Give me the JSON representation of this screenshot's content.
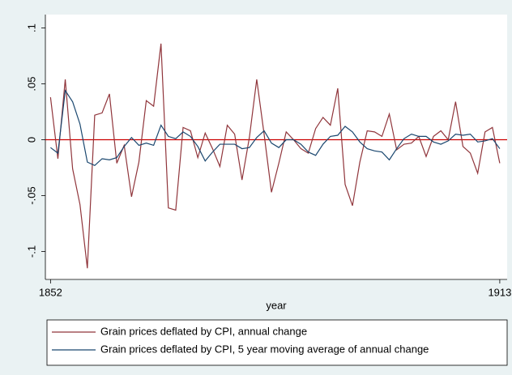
{
  "chart_data": {
    "type": "line",
    "x_label": "year",
    "x": [
      1852,
      1853,
      1854,
      1855,
      1856,
      1857,
      1858,
      1859,
      1860,
      1861,
      1862,
      1863,
      1864,
      1865,
      1866,
      1867,
      1868,
      1869,
      1870,
      1871,
      1872,
      1873,
      1874,
      1875,
      1876,
      1877,
      1878,
      1879,
      1880,
      1881,
      1882,
      1883,
      1884,
      1885,
      1886,
      1887,
      1888,
      1889,
      1890,
      1891,
      1892,
      1893,
      1894,
      1895,
      1896,
      1897,
      1898,
      1899,
      1900,
      1901,
      1902,
      1903,
      1904,
      1905,
      1906,
      1907,
      1908,
      1909,
      1910,
      1911,
      1912,
      1913
    ],
    "series": [
      {
        "name": "Grain prices deflated by CPI, annual change",
        "color": "#90353b",
        "values": [
          0.038,
          -0.017,
          0.054,
          -0.026,
          -0.058,
          -0.115,
          0.022,
          0.024,
          0.041,
          -0.021,
          -0.005,
          -0.051,
          -0.02,
          0.035,
          0.03,
          0.086,
          -0.061,
          -0.063,
          0.011,
          0.008,
          -0.016,
          0.006,
          -0.008,
          -0.024,
          0.013,
          0.005,
          -0.036,
          0.002,
          0.054,
          0.005,
          -0.047,
          -0.021,
          0.007,
          0.0,
          -0.008,
          -0.012,
          0.01,
          0.02,
          0.013,
          0.046,
          -0.04,
          -0.059,
          -0.02,
          0.008,
          0.007,
          0.003,
          0.023,
          -0.009,
          -0.004,
          -0.003,
          0.003,
          -0.015,
          0.003,
          0.008,
          0.0,
          0.034,
          -0.006,
          -0.012,
          -0.03,
          0.007,
          0.011,
          -0.021
        ]
      },
      {
        "name": "Grain prices deflated by CPI, 5 year moving average of annual change",
        "color": "#1a476f",
        "values": [
          -0.007,
          -0.012,
          0.044,
          0.034,
          0.014,
          -0.02,
          -0.023,
          -0.017,
          -0.018,
          -0.016,
          -0.006,
          0.002,
          -0.005,
          -0.003,
          -0.005,
          0.013,
          0.003,
          0.001,
          0.007,
          0.003,
          -0.006,
          -0.019,
          -0.011,
          -0.004,
          -0.004,
          -0.004,
          -0.008,
          -0.007,
          0.002,
          0.008,
          -0.003,
          -0.007,
          0.0,
          0.0,
          -0.004,
          -0.011,
          -0.014,
          -0.004,
          0.003,
          0.004,
          0.012,
          0.007,
          -0.002,
          -0.008,
          -0.01,
          -0.011,
          -0.018,
          -0.008,
          0.001,
          0.005,
          0.003,
          0.003,
          -0.002,
          -0.004,
          -0.001,
          0.005,
          0.004,
          0.005,
          -0.002,
          -0.001,
          0.001,
          -0.008
        ]
      }
    ],
    "xlim": [
      1851.3,
      1914
    ],
    "ylim": [
      -0.125,
      0.112
    ],
    "xticks": [
      1852,
      1913
    ],
    "yticks": [
      {
        "value": -0.1,
        "label": "-.1"
      },
      {
        "value": -0.05,
        "label": "-.05"
      },
      {
        "value": 0,
        "label": "0"
      },
      {
        "value": 0.05,
        "label": ".05"
      },
      {
        "value": 0.1,
        "label": ".1"
      }
    ],
    "reference_line": {
      "value": 0,
      "color": "#cc0000"
    },
    "legend": "bottom"
  }
}
